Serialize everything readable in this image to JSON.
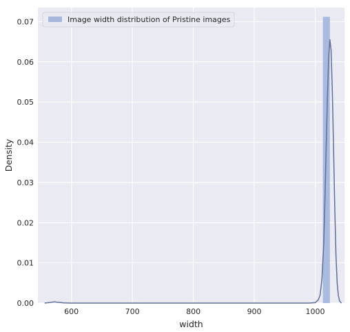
{
  "chart_data": {
    "type": "histogram",
    "title": "",
    "xlabel": "width",
    "ylabel": "Density",
    "xlim": [
      545,
      1048
    ],
    "ylim": [
      0,
      0.0735
    ],
    "x_ticks": [
      600,
      700,
      800,
      900,
      1000
    ],
    "y_ticks": [
      0.0,
      0.01,
      0.02,
      0.03,
      0.04,
      0.05,
      0.06,
      0.07
    ],
    "grid": true,
    "background": "#eaeaf2",
    "legend": {
      "position": "top-left",
      "entries": [
        {
          "label": "Image width distribution of Pristine images",
          "color": "#a6b6dc"
        }
      ]
    },
    "series": [
      {
        "name": "Image width distribution of Pristine images",
        "type": "histogram",
        "color": "#a6b6dc",
        "bins": [
          {
            "x0": 1012.5,
            "x1": 1024,
            "density": 0.0712
          }
        ]
      },
      {
        "name": "kde",
        "type": "line",
        "color": "#5e6f9a",
        "points": [
          [
            556,
            0.0
          ],
          [
            565,
            0.00015
          ],
          [
            572,
            0.0003
          ],
          [
            578,
            0.0002
          ],
          [
            588,
            5e-05
          ],
          [
            600,
            0.0
          ],
          [
            700,
            0.0
          ],
          [
            800,
            0.0
          ],
          [
            900,
            0.0
          ],
          [
            990,
            0.0
          ],
          [
            1000,
            0.0001
          ],
          [
            1005,
            0.0008
          ],
          [
            1008,
            0.002
          ],
          [
            1011,
            0.006
          ],
          [
            1014,
            0.015
          ],
          [
            1016,
            0.026
          ],
          [
            1018,
            0.039
          ],
          [
            1020,
            0.051
          ],
          [
            1022,
            0.061
          ],
          [
            1024,
            0.0655
          ],
          [
            1026,
            0.063
          ],
          [
            1028,
            0.053
          ],
          [
            1030,
            0.039
          ],
          [
            1032,
            0.024
          ],
          [
            1034,
            0.012
          ],
          [
            1036,
            0.005
          ],
          [
            1038,
            0.0018
          ],
          [
            1040,
            0.0005
          ],
          [
            1043,
            0.0
          ]
        ]
      }
    ]
  }
}
